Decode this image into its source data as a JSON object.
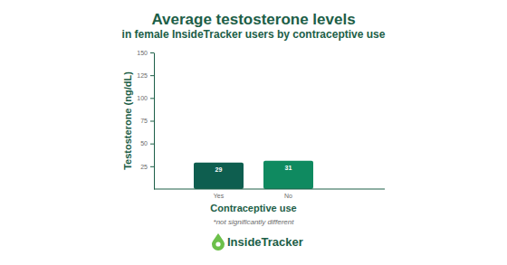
{
  "chart_data": {
    "type": "bar",
    "title": "Average testosterone levels",
    "subtitle": "in female InsideTracker users by contraceptive use",
    "x_label": "Contraceptive use",
    "y_label": "Testosterone (ng/dL)",
    "annotations": [
      "*not significantly different"
    ],
    "logo_text": "InsideTracker",
    "categories": [
      "Yes",
      "No"
    ],
    "values": [
      29,
      31
    ],
    "colors": [
      "#0e5e4f",
      "#0f8a60"
    ],
    "ylim": [
      0,
      150
    ],
    "yticks": [
      25,
      50,
      75,
      100,
      125,
      150
    ],
    "data_labels": true,
    "grid": false
  }
}
